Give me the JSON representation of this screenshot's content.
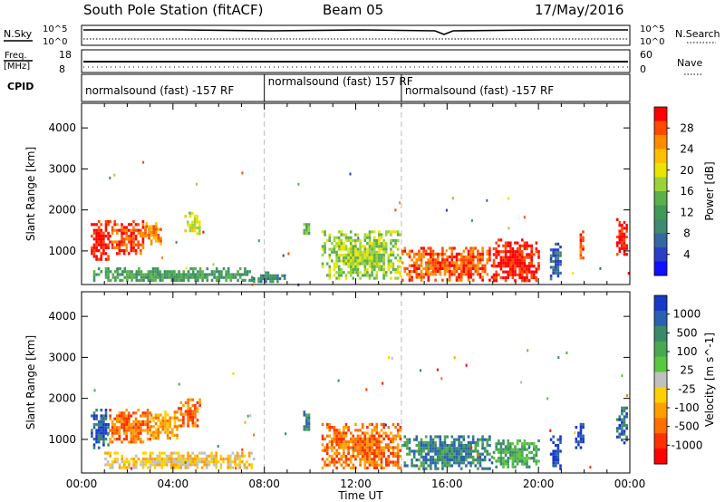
{
  "header": {
    "station": "South Pole Station (fitACF)",
    "beam": "Beam 05",
    "date": "17/May/2016"
  },
  "top_panels": {
    "nsky_label": "N.Sky",
    "nsky_ticks": [
      "10^5",
      "10^0"
    ],
    "nsearch_label": "N.Search",
    "nsearch_ticks": [
      "10^5",
      "10^0"
    ],
    "freq_label_1": "Freq.",
    "freq_label_2": "[MHz]",
    "freq_ticks": [
      "18",
      "8"
    ],
    "nave_label": "Nave",
    "nave_ticks": [
      "60",
      "0"
    ],
    "cpid_label": "CPID",
    "cpid_segments": [
      {
        "label": "normalsound (fast) -157 RF",
        "start_hour": 0
      },
      {
        "label": "normalsound (fast) 157 RF",
        "start_hour": 8
      },
      {
        "label": "normalsound (fast) -157 RF",
        "start_hour": 14
      }
    ]
  },
  "chart_data": [
    {
      "type": "heatmap",
      "parameter": "power",
      "ylabel": "Slant Range [km]",
      "xlim_hours": [
        0,
        24
      ],
      "ylim_km": [
        180,
        4600
      ],
      "yticks": [
        "1000",
        "2000",
        "3000",
        "4000"
      ],
      "colorbar_label": "Power [dB]",
      "colorbar_ticks": [
        "28",
        "24",
        "20",
        "16",
        "12",
        "8",
        "4"
      ],
      "colorbar_colors": [
        "#ff0000",
        "#ff4a00",
        "#ff8c00",
        "#ffc000",
        "#e9e400",
        "#9ad23c",
        "#5bb04a",
        "#3f9a58",
        "#3f8a70",
        "#3568a0",
        "#2a3ec8",
        "#1010ff"
      ],
      "echo_regions": [
        {
          "t0": 0.4,
          "t1": 1.2,
          "r0": 800,
          "r1": 1750,
          "level": 0
        },
        {
          "t0": 1.2,
          "t1": 2.8,
          "r0": 950,
          "r1": 1750,
          "level": 1
        },
        {
          "t0": 2.8,
          "t1": 3.5,
          "r0": 1200,
          "r1": 1700,
          "level": 2
        },
        {
          "t0": 4.5,
          "t1": 5.2,
          "r0": 1400,
          "r1": 1950,
          "level": 4
        },
        {
          "t0": 0.4,
          "t1": 7.5,
          "r0": 250,
          "r1": 600,
          "level": 7
        },
        {
          "t0": 7.5,
          "t1": 9.0,
          "r0": 250,
          "r1": 500,
          "level": 8
        },
        {
          "t0": 9.7,
          "t1": 10.0,
          "r0": 1400,
          "r1": 1750,
          "level": 6
        },
        {
          "t0": 10.5,
          "t1": 14.0,
          "r0": 300,
          "r1": 1500,
          "level": 5
        },
        {
          "t0": 14.0,
          "t1": 18.0,
          "r0": 300,
          "r1": 1100,
          "level": 1
        },
        {
          "t0": 18.0,
          "t1": 20.0,
          "r0": 300,
          "r1": 1300,
          "level": 0
        },
        {
          "t0": 20.5,
          "t1": 21.0,
          "r0": 300,
          "r1": 1200,
          "level": 9
        },
        {
          "t0": 21.7,
          "t1": 22.0,
          "r0": 800,
          "r1": 1500,
          "level": 1
        },
        {
          "t0": 23.4,
          "t1": 23.9,
          "r0": 900,
          "r1": 1800,
          "level": 0
        }
      ]
    },
    {
      "type": "heatmap",
      "parameter": "velocity",
      "xlabel": "Time UT",
      "ylabel": "Slant Range [km]",
      "xlim_hours": [
        0,
        24
      ],
      "ylim_km": [
        180,
        4600
      ],
      "xticks": [
        "00:00",
        "04:00",
        "08:00",
        "12:00",
        "16:00",
        "20:00",
        "00:00"
      ],
      "yticks": [
        "1000",
        "2000",
        "3000",
        "4000"
      ],
      "colorbar_label": "Velocity [m s^-1]",
      "colorbar_ticks": [
        "1000",
        "500",
        "100",
        "25",
        "-25",
        "-100",
        "-500",
        "-1000"
      ],
      "colorbar_colors": [
        "#1838c8",
        "#2a60b0",
        "#3a8a68",
        "#4aa850",
        "#58c840",
        "#c0c0c0",
        "#ffd000",
        "#ffa000",
        "#ff7000",
        "#ff3000",
        "#ff0000"
      ],
      "echo_regions": [
        {
          "t0": 0.4,
          "t1": 1.2,
          "r0": 800,
          "r1": 1750,
          "level": 1
        },
        {
          "t0": 1.2,
          "t1": 3.0,
          "r0": 950,
          "r1": 1750,
          "level": 8
        },
        {
          "t0": 3.0,
          "t1": 4.2,
          "r0": 1000,
          "r1": 1700,
          "level": 7
        },
        {
          "t0": 4.2,
          "t1": 5.2,
          "r0": 1300,
          "r1": 2000,
          "level": 8
        },
        {
          "t0": 1.0,
          "t1": 7.5,
          "r0": 300,
          "r1": 700,
          "level": 6
        },
        {
          "t0": 9.7,
          "t1": 10.0,
          "r0": 1200,
          "r1": 1700,
          "level": 2
        },
        {
          "t0": 10.5,
          "t1": 14.0,
          "r0": 300,
          "r1": 1400,
          "level": 8
        },
        {
          "t0": 14.0,
          "t1": 18.0,
          "r0": 300,
          "r1": 1100,
          "level": 2
        },
        {
          "t0": 18.0,
          "t1": 20.0,
          "r0": 300,
          "r1": 1000,
          "level": 3
        },
        {
          "t0": 20.5,
          "t1": 21.0,
          "r0": 300,
          "r1": 1100,
          "level": 0
        },
        {
          "t0": 21.6,
          "t1": 22.0,
          "r0": 800,
          "r1": 1400,
          "level": 0
        },
        {
          "t0": 23.4,
          "t1": 23.9,
          "r0": 900,
          "r1": 1800,
          "level": 1
        }
      ]
    }
  ]
}
